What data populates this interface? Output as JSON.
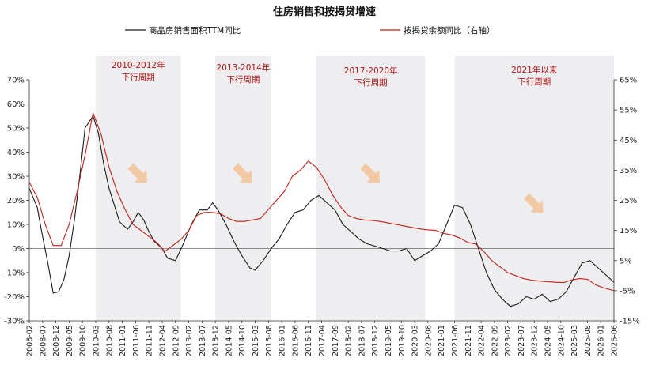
{
  "chart_data": {
    "type": "line",
    "title": "住房销售和按揭贷增速",
    "legend_placement": "top",
    "series": [
      {
        "name": "商品房销售面积TTM同比",
        "color": "#1a1a1a",
        "axis": "left",
        "points": [
          [
            "2008-02",
            25
          ],
          [
            "2008-05",
            17
          ],
          [
            "2008-07",
            5
          ],
          [
            "2008-09",
            -6
          ],
          [
            "2008-11",
            -18.5
          ],
          [
            "2009-01",
            -18
          ],
          [
            "2009-03",
            -13
          ],
          [
            "2009-05",
            -3
          ],
          [
            "2009-07",
            12
          ],
          [
            "2009-09",
            30
          ],
          [
            "2009-11",
            50
          ],
          [
            "2010-02",
            55
          ],
          [
            "2010-04",
            48
          ],
          [
            "2010-06",
            35
          ],
          [
            "2010-08",
            25
          ],
          [
            "2010-10",
            18
          ],
          [
            "2010-12",
            11
          ],
          [
            "2011-03",
            8
          ],
          [
            "2011-05",
            11
          ],
          [
            "2011-07",
            15
          ],
          [
            "2011-09",
            12
          ],
          [
            "2011-11",
            7
          ],
          [
            "2012-01",
            3
          ],
          [
            "2012-04",
            0
          ],
          [
            "2012-06",
            -4
          ],
          [
            "2012-09",
            -5
          ],
          [
            "2012-12",
            2
          ],
          [
            "2013-03",
            10
          ],
          [
            "2013-06",
            16
          ],
          [
            "2013-09",
            16
          ],
          [
            "2013-11",
            19
          ],
          [
            "2014-01",
            16
          ],
          [
            "2014-04",
            10
          ],
          [
            "2014-07",
            3
          ],
          [
            "2014-10",
            -3
          ],
          [
            "2015-01",
            -8
          ],
          [
            "2015-03",
            -9
          ],
          [
            "2015-06",
            -5
          ],
          [
            "2015-09",
            0
          ],
          [
            "2015-12",
            4
          ],
          [
            "2016-03",
            10
          ],
          [
            "2016-06",
            15
          ],
          [
            "2016-09",
            16
          ],
          [
            "2016-12",
            20
          ],
          [
            "2017-03",
            22
          ],
          [
            "2017-06",
            19
          ],
          [
            "2017-09",
            16
          ],
          [
            "2017-12",
            10
          ],
          [
            "2018-03",
            7
          ],
          [
            "2018-06",
            4
          ],
          [
            "2018-09",
            2
          ],
          [
            "2018-12",
            1
          ],
          [
            "2019-03",
            0
          ],
          [
            "2019-06",
            -1
          ],
          [
            "2019-09",
            -1
          ],
          [
            "2019-12",
            0
          ],
          [
            "2020-03",
            -5
          ],
          [
            "2020-06",
            -3
          ],
          [
            "2020-09",
            -1
          ],
          [
            "2020-12",
            2
          ],
          [
            "2021-03",
            10
          ],
          [
            "2021-06",
            18
          ],
          [
            "2021-09",
            17
          ],
          [
            "2021-12",
            10
          ],
          [
            "2022-03",
            0
          ],
          [
            "2022-06",
            -10
          ],
          [
            "2022-09",
            -17
          ],
          [
            "2022-12",
            -21
          ],
          [
            "2023-03",
            -24
          ],
          [
            "2023-06",
            -23
          ],
          [
            "2023-09",
            -20
          ],
          [
            "2023-12",
            -21
          ],
          [
            "2024-03",
            -19
          ],
          [
            "2024-06",
            -22
          ],
          [
            "2024-09",
            -21
          ],
          [
            "2024-12",
            -18
          ],
          [
            "2025-03",
            -12
          ],
          [
            "2025-06",
            -6
          ],
          [
            "2025-09",
            -5
          ],
          [
            "2025-12",
            -8
          ],
          [
            "2026-03",
            -11
          ],
          [
            "2026-06",
            -14
          ]
        ]
      },
      {
        "name": "按揭贷余额同比（右轴）",
        "color": "#c0211a",
        "axis": "right",
        "points": [
          [
            "2008-02",
            31
          ],
          [
            "2008-05",
            26
          ],
          [
            "2008-08",
            17
          ],
          [
            "2008-11",
            10
          ],
          [
            "2009-02",
            10
          ],
          [
            "2009-05",
            17
          ],
          [
            "2009-08",
            28
          ],
          [
            "2009-11",
            40
          ],
          [
            "2010-02",
            54
          ],
          [
            "2010-05",
            47
          ],
          [
            "2010-08",
            36
          ],
          [
            "2010-11",
            28
          ],
          [
            "2011-02",
            22
          ],
          [
            "2011-05",
            17
          ],
          [
            "2011-08",
            15
          ],
          [
            "2011-11",
            13
          ],
          [
            "2012-02",
            11
          ],
          [
            "2012-05",
            8
          ],
          [
            "2012-08",
            10
          ],
          [
            "2012-11",
            12
          ],
          [
            "2013-02",
            15
          ],
          [
            "2013-05",
            20
          ],
          [
            "2013-08",
            21
          ],
          [
            "2013-11",
            21
          ],
          [
            "2014-02",
            20.5
          ],
          [
            "2014-05",
            19
          ],
          [
            "2014-08",
            18
          ],
          [
            "2014-11",
            18
          ],
          [
            "2015-02",
            18.5
          ],
          [
            "2015-05",
            19
          ],
          [
            "2015-08",
            22
          ],
          [
            "2015-11",
            25
          ],
          [
            "2016-02",
            28
          ],
          [
            "2016-05",
            33
          ],
          [
            "2016-08",
            35
          ],
          [
            "2016-11",
            38
          ],
          [
            "2017-02",
            36
          ],
          [
            "2017-05",
            32
          ],
          [
            "2017-08",
            27
          ],
          [
            "2017-11",
            23
          ],
          [
            "2018-02",
            20
          ],
          [
            "2018-05",
            19
          ],
          [
            "2018-08",
            18.5
          ],
          [
            "2018-11",
            18.3
          ],
          [
            "2019-02",
            18
          ],
          [
            "2019-05",
            17.5
          ],
          [
            "2019-08",
            17
          ],
          [
            "2019-11",
            16.5
          ],
          [
            "2020-02",
            16
          ],
          [
            "2020-05",
            15.5
          ],
          [
            "2020-08",
            15.2
          ],
          [
            "2020-11",
            15
          ],
          [
            "2021-02",
            14
          ],
          [
            "2021-05",
            13.5
          ],
          [
            "2021-08",
            12.5
          ],
          [
            "2021-11",
            11
          ],
          [
            "2022-02",
            10.5
          ],
          [
            "2022-05",
            8
          ],
          [
            "2022-08",
            5
          ],
          [
            "2022-11",
            3
          ],
          [
            "2023-02",
            1
          ],
          [
            "2023-05",
            0
          ],
          [
            "2023-08",
            -1
          ],
          [
            "2023-11",
            -1.5
          ],
          [
            "2024-02",
            -1.8
          ],
          [
            "2024-05",
            -2
          ],
          [
            "2024-08",
            -2.2
          ],
          [
            "2024-11",
            -2.3
          ],
          [
            "2025-02",
            -1.5
          ],
          [
            "2025-05",
            -1
          ],
          [
            "2025-08",
            -1.2
          ],
          [
            "2025-11",
            -3
          ],
          [
            "2026-02",
            -4
          ],
          [
            "2026-06",
            -5
          ]
        ]
      }
    ],
    "left_axis": {
      "ylim": [
        -30,
        70
      ],
      "ticks": [
        "-30%",
        "-20%",
        "-10%",
        "0%",
        "10%",
        "20%",
        "30%",
        "40%",
        "50%",
        "60%",
        "70%"
      ]
    },
    "right_axis": {
      "ylim": [
        -15,
        65
      ],
      "ticks": [
        "-15%",
        "-5%",
        "5%",
        "15%",
        "25%",
        "35%",
        "45%",
        "55%",
        "65%"
      ]
    },
    "x_ticks": [
      "2008-02",
      "2008-07",
      "2008-12",
      "2009-05",
      "2009-10",
      "2010-03",
      "2010-08",
      "2011-01",
      "2011-06",
      "2011-11",
      "2012-04",
      "2012-09",
      "2013-02",
      "2013-07",
      "2013-12",
      "2014-05",
      "2014-10",
      "2015-03",
      "2015-08",
      "2016-01",
      "2016-06",
      "2016-11",
      "2017-04",
      "2017-09",
      "2018-02",
      "2018-07",
      "2018-12",
      "2019-05",
      "2019-10",
      "2020-03",
      "2020-08",
      "2021-01",
      "2021-06",
      "2021-11",
      "2022-04",
      "2022-09",
      "2023-02",
      "2023-07",
      "2023-12",
      "2024-05",
      "2024-10",
      "2025-03",
      "2025-08",
      "2026-01",
      "2026-06"
    ],
    "shaded_periods": [
      {
        "start": "2010-03",
        "end": "2012-11",
        "label_line1": "2010-2012年",
        "label_line2": "下行周期"
      },
      {
        "start": "2013-12",
        "end": "2015-09",
        "label_line1": "2013-2014年",
        "label_line2": "下行周期"
      },
      {
        "start": "2017-02",
        "end": "2020-07",
        "label_line1": "2017-2020年",
        "label_line2": "下行周期"
      },
      {
        "start": "2021-06",
        "end": "2026-06",
        "label_line1": "2021年以来",
        "label_line2": "下行周期"
      }
    ],
    "annotation_color": "#b01010",
    "shade_color": "#eeeef0",
    "arrow_color": "#f0c7a0"
  }
}
